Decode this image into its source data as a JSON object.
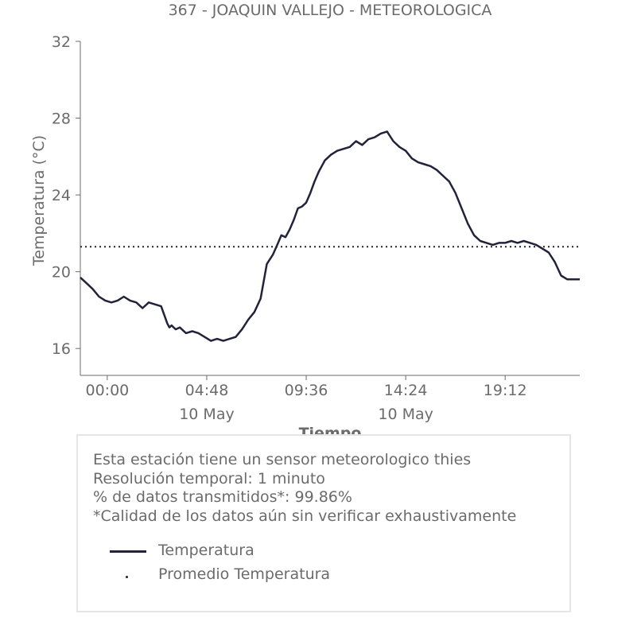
{
  "chart_data": {
    "type": "line",
    "title": "367 - JOAQUIN VALLEJO - METEOROLOGICA",
    "xlabel": "Tiempo",
    "ylabel": "Temperatura (°C)",
    "ylim": [
      14.6,
      32
    ],
    "yticks": [
      "16",
      "20",
      "24",
      "28",
      "32"
    ],
    "xticks": [
      {
        "label": "00:00",
        "sub": ""
      },
      {
        "label": "04:48",
        "sub": "10 May"
      },
      {
        "label": "09:36",
        "sub": ""
      },
      {
        "label": "14:24",
        "sub": "10 May"
      },
      {
        "label": "19:12",
        "sub": ""
      }
    ],
    "xlim_hours": [
      -1.3,
      22.8
    ],
    "grid": false,
    "series": [
      {
        "name": "Temperatura",
        "color": "#22223b",
        "x_hours": [
          -1.3,
          -1.0,
          -0.7,
          -0.4,
          -0.1,
          0.2,
          0.5,
          0.8,
          1.1,
          1.4,
          1.7,
          2.0,
          2.3,
          2.6,
          2.9,
          3.0,
          3.1,
          3.3,
          3.5,
          3.8,
          4.1,
          4.4,
          4.7,
          5.0,
          5.3,
          5.6,
          5.9,
          6.2,
          6.5,
          6.8,
          7.1,
          7.4,
          7.7,
          8.0,
          8.2,
          8.4,
          8.6,
          8.8,
          9.0,
          9.2,
          9.4,
          9.6,
          9.8,
          10.0,
          10.2,
          10.5,
          10.8,
          11.1,
          11.4,
          11.7,
          12.0,
          12.3,
          12.6,
          12.9,
          13.2,
          13.5,
          13.8,
          14.1,
          14.4,
          14.7,
          15.0,
          15.3,
          15.6,
          15.9,
          16.2,
          16.5,
          16.8,
          17.1,
          17.4,
          17.7,
          18.0,
          18.3,
          18.6,
          18.9,
          19.2,
          19.5,
          19.8,
          20.1,
          20.4,
          20.7,
          21.0,
          21.3,
          21.6,
          21.9,
          22.2,
          22.5,
          22.8
        ],
        "values": [
          19.7,
          19.4,
          19.1,
          18.7,
          18.5,
          18.4,
          18.5,
          18.7,
          18.5,
          18.4,
          18.1,
          18.4,
          18.3,
          18.2,
          17.3,
          17.1,
          17.2,
          17.0,
          17.1,
          16.8,
          16.9,
          16.8,
          16.6,
          16.4,
          16.5,
          16.4,
          16.5,
          16.6,
          17.0,
          17.5,
          17.9,
          18.6,
          20.4,
          20.9,
          21.4,
          21.9,
          21.8,
          22.2,
          22.7,
          23.3,
          23.4,
          23.6,
          24.1,
          24.7,
          25.2,
          25.8,
          26.1,
          26.3,
          26.4,
          26.5,
          26.8,
          26.6,
          26.9,
          27.0,
          27.2,
          27.3,
          26.8,
          26.5,
          26.3,
          25.9,
          25.7,
          25.6,
          25.5,
          25.3,
          25.0,
          24.7,
          24.1,
          23.3,
          22.5,
          21.9,
          21.6,
          21.5,
          21.4,
          21.5,
          21.5,
          21.6,
          21.5,
          21.6,
          21.5,
          21.4,
          21.2,
          21.0,
          20.5,
          19.8,
          19.6,
          19.6,
          19.6
        ]
      },
      {
        "name": "Promedio Temperatura",
        "color": "#22223b",
        "style": "dotted",
        "constant": 21.3
      }
    ]
  },
  "info": {
    "lines": [
      "Esta estación tiene un sensor meteorologico thies",
      "Resolución temporal: 1 minuto",
      "% de datos transmitidos*: 99.86%",
      "*Calidad de los datos aún sin verificar exhaustivamente"
    ],
    "legend": [
      "Temperatura",
      "Promedio Temperatura"
    ]
  }
}
